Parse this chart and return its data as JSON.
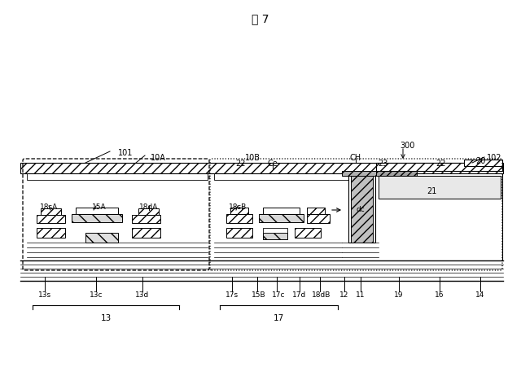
{
  "title": "図 7",
  "bg_color": "#ffffff",
  "labels": {
    "title": "図 7",
    "10A": "10A",
    "10B": "10B",
    "101": "101",
    "102": "102",
    "300": "300",
    "CH": "CH",
    "Ce": "Ce",
    "dc": "dc",
    "13s": "13s",
    "13c": "13c",
    "13d": "13d",
    "13": "13",
    "15A": "15A",
    "15B": "15B",
    "17s": "17s",
    "17c": "17c",
    "17d": "17d",
    "17": "17",
    "18sA": "18sA",
    "18dA": "18dA",
    "18sB": "18sB",
    "18dB": "18dB",
    "22": "22",
    "23": "23",
    "20": "20",
    "21": "21",
    "11": "11",
    "12": "12",
    "14": "14",
    "16": "16",
    "19": "19"
  }
}
